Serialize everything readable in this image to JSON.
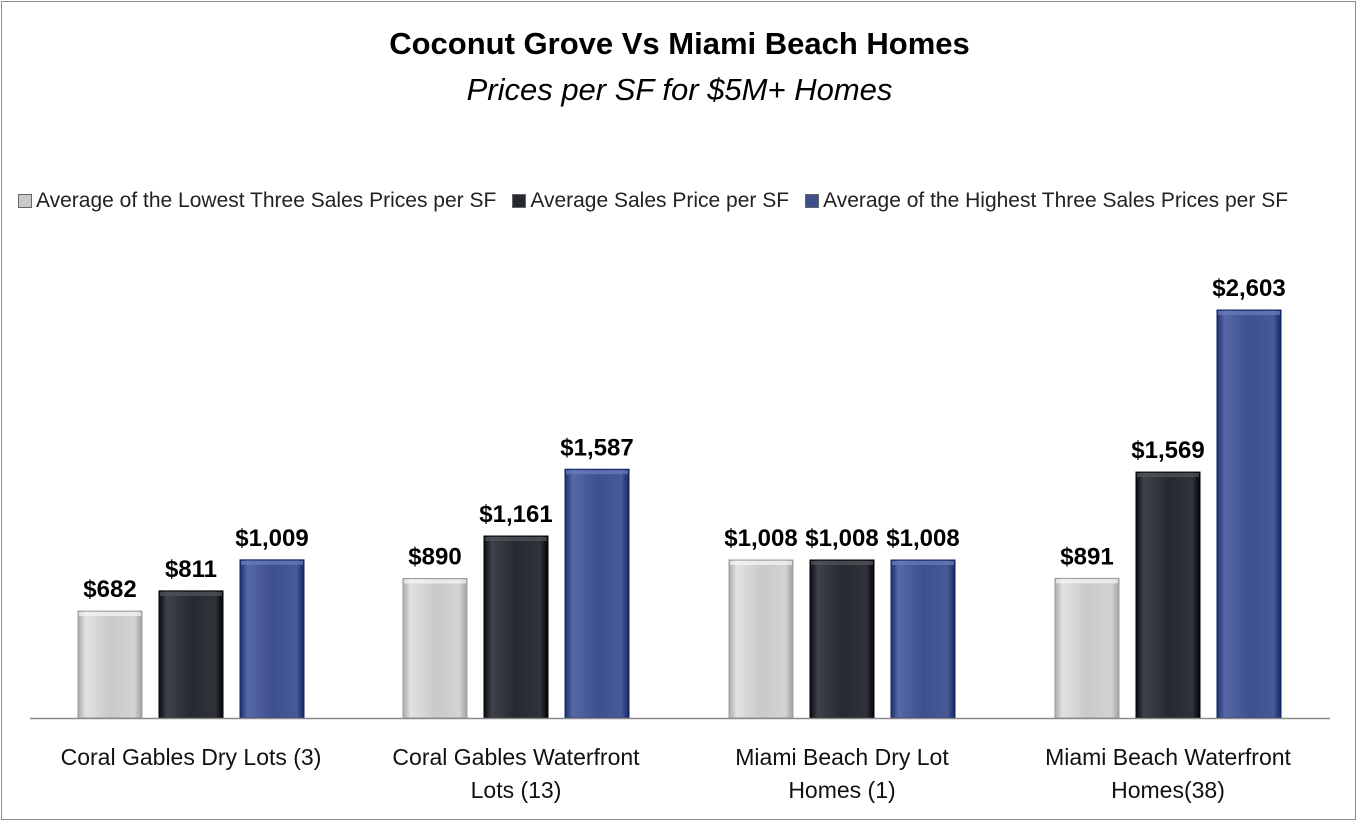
{
  "chart_data": {
    "type": "bar",
    "title": "Coconut Grove Vs Miami Beach Homes",
    "subtitle": "Prices per SF for $5M+ Homes",
    "categories": [
      "Coral Gables Dry Lots (3)",
      "Coral Gables Waterfront Lots (13)",
      "Miami Beach Dry Lot Homes (1)",
      "Miami Beach Waterfront Homes(38)"
    ],
    "category_lines": [
      [
        "Coral Gables Dry Lots (3)"
      ],
      [
        "Coral Gables Waterfront",
        "Lots (13)"
      ],
      [
        "Miami Beach Dry Lot",
        "Homes (1)"
      ],
      [
        "Miami Beach Waterfront",
        "Homes(38)"
      ]
    ],
    "series": [
      {
        "name": "Average of the Lowest Three Sales Prices per SF",
        "color": "#c9c9c9",
        "values": [
          682,
          890,
          1008,
          891
        ],
        "labels": [
          "$682",
          "$890",
          "$1,008",
          "$891"
        ]
      },
      {
        "name": "Average Sales Price per SF",
        "color": "#262a30",
        "values": [
          811,
          1161,
          1008,
          1569
        ],
        "labels": [
          "$811",
          "$1,161",
          "$1,008",
          "$1,569"
        ]
      },
      {
        "name": "Average of the Highest Three Sales Prices per SF",
        "color": "#3e4f8e",
        "values": [
          1009,
          1587,
          1008,
          2603
        ],
        "labels": [
          "$1,009",
          "$1,587",
          "$1,008",
          "$2,603"
        ]
      }
    ],
    "ylim": [
      0,
      2603
    ],
    "grid": false,
    "legend_position": "top",
    "xlabel": "",
    "ylabel": ""
  }
}
